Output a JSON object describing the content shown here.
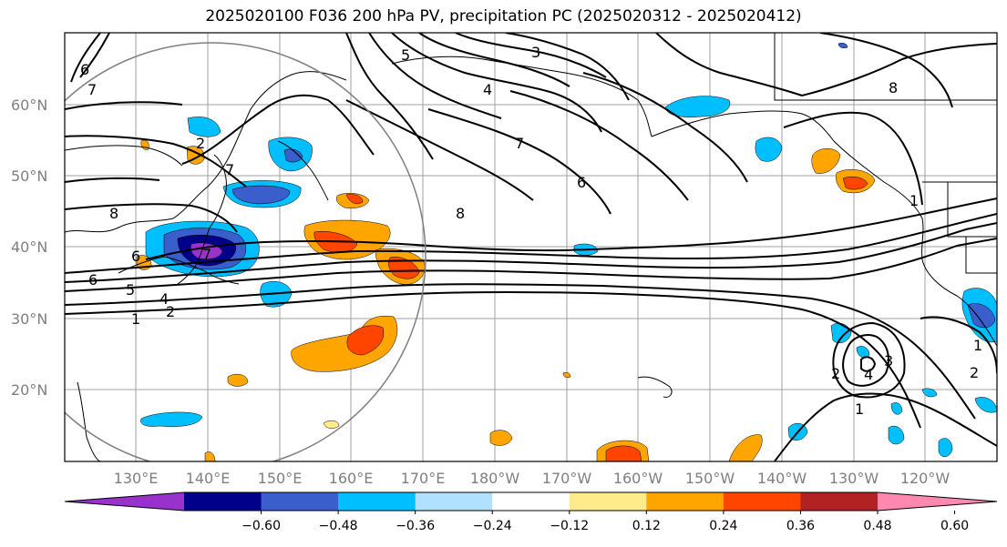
{
  "title": "2025020100 F036 200 hPa PV, precipitation PC (2025020312 - 2025020412)",
  "lat_labels": [
    "60°N",
    "50°N",
    "40°N",
    "30°N",
    "20°N"
  ],
  "lon_labels": [
    "130°E",
    "140°E",
    "150°E",
    "160°E",
    "170°E",
    "180°W",
    "170°W",
    "160°W",
    "150°W",
    "140°W",
    "130°W",
    "120°W"
  ],
  "colorbar": {
    "ticks": [
      "−0.60",
      "−0.48",
      "−0.36",
      "−0.24",
      "−0.12",
      "0.12",
      "0.24",
      "0.36",
      "0.48",
      "0.60"
    ],
    "colors": [
      "#9932cc",
      "#00008b",
      "#3a5fcd",
      "#00bfff",
      "#b0e2ff",
      "#ffffff",
      "#ffeb8a",
      "#ffa500",
      "#ff4500",
      "#b22222",
      "#ff88b0"
    ]
  },
  "contour_labels": [
    "6",
    "7",
    "5",
    "3",
    "4",
    "8",
    "7",
    "6",
    "8",
    "1",
    "8",
    "6",
    "7",
    "6",
    "5",
    "4",
    "1",
    "2",
    "3",
    "2",
    "4",
    "2",
    "1",
    "7",
    "1",
    "2"
  ]
}
